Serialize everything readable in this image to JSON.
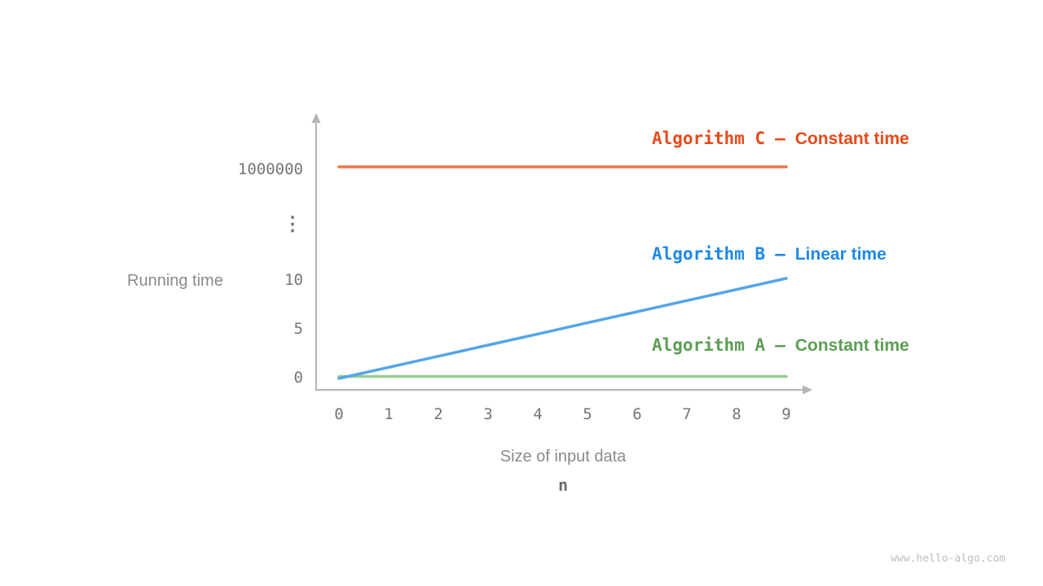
{
  "page": {
    "watermark": "www.hello-algo.com"
  },
  "chart_data": {
    "type": "line",
    "title": "",
    "xlabel": "Size of input data",
    "xlabel_symbol": "n",
    "ylabel": "Running time",
    "x": [
      0,
      1,
      2,
      3,
      4,
      5,
      6,
      7,
      8,
      9
    ],
    "x_tick_labels": [
      "0",
      "1",
      "2",
      "3",
      "4",
      "5",
      "6",
      "7",
      "8",
      "9"
    ],
    "y_tick_labels": [
      "1000000",
      "⋮",
      "10",
      "5",
      "0"
    ],
    "y_axis_break": true,
    "grid": false,
    "legend_position": "inline-right",
    "legend_separator": "—",
    "axis_color": "#b4b4b4",
    "series": [
      {
        "name": "Algorithm C",
        "label": "Constant time",
        "color": "#f3744a",
        "label_color": "#e64a19",
        "values": [
          1000000,
          1000000,
          1000000,
          1000000,
          1000000,
          1000000,
          1000000,
          1000000,
          1000000,
          1000000
        ]
      },
      {
        "name": "Algorithm B",
        "label": "Linear time",
        "color": "#54a5e8",
        "label_color": "#1e88e5",
        "values": [
          0,
          1.11,
          2.22,
          3.33,
          4.44,
          5.56,
          6.67,
          7.78,
          8.89,
          10
        ]
      },
      {
        "name": "Algorithm A",
        "label": "Constant time",
        "color": "#97ce91",
        "label_color": "#5c9e54",
        "values": [
          0.2,
          0.2,
          0.2,
          0.2,
          0.2,
          0.2,
          0.2,
          0.2,
          0.2,
          0.2
        ]
      }
    ]
  }
}
